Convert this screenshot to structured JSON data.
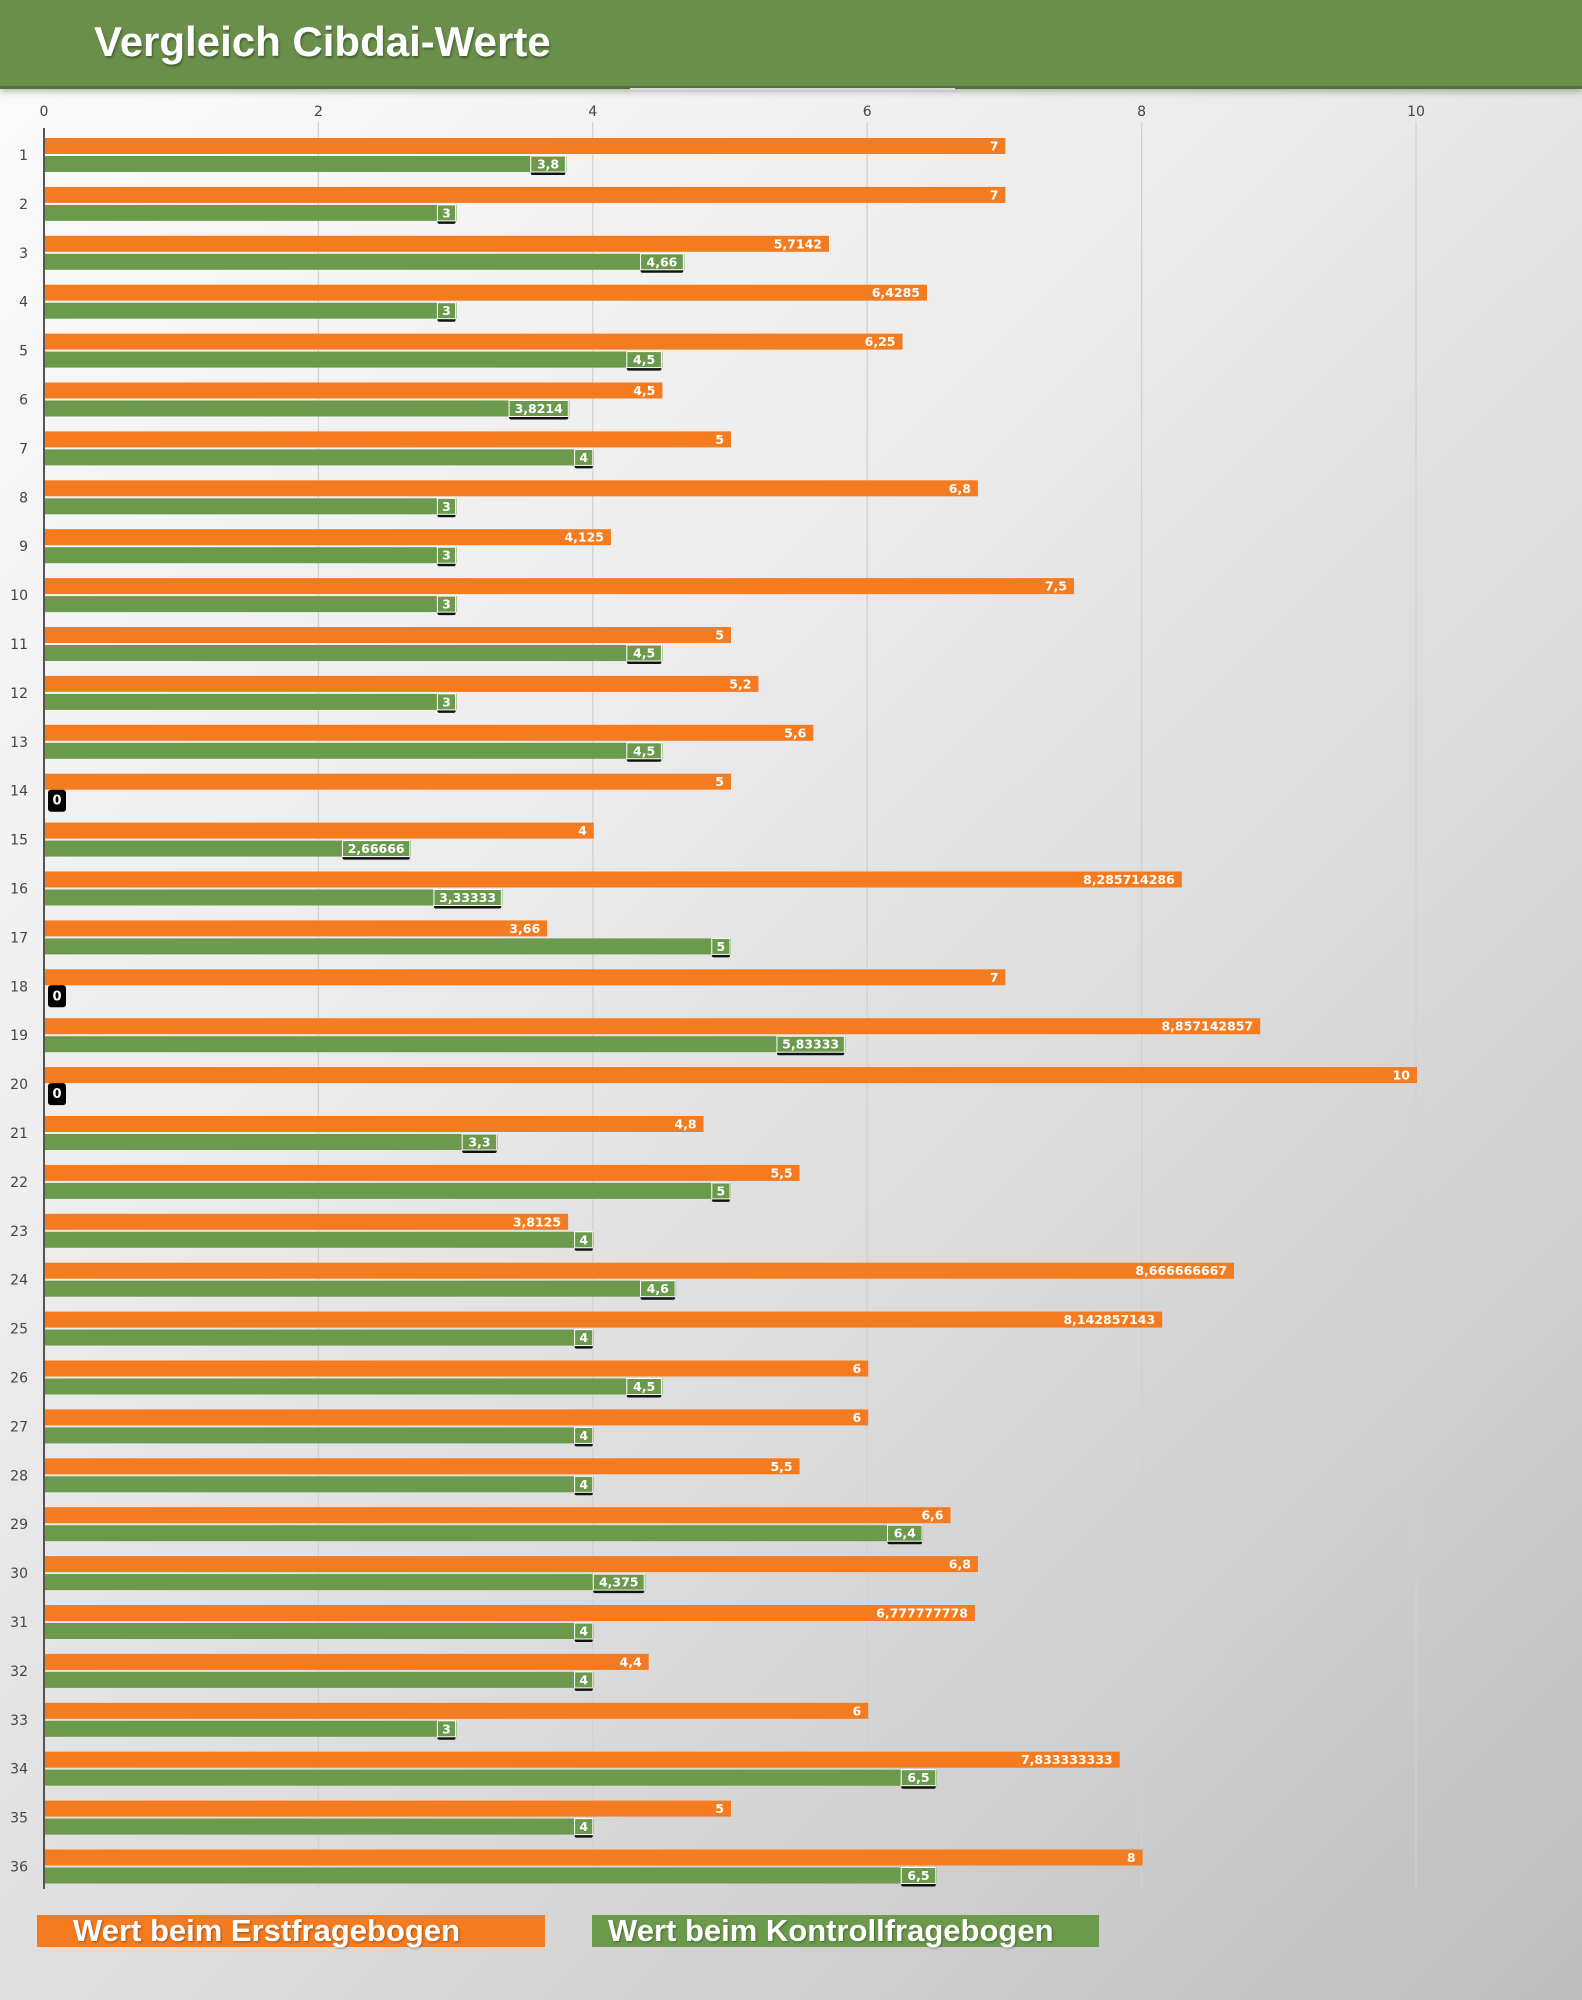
{
  "title": "Vergleich Cibdai-Werte",
  "colors": {
    "header": "#6a8f4b",
    "orange": "#f47b20",
    "green": "#6c9a4d",
    "zero_label": "#000000"
  },
  "legend": {
    "orange_label": "Wert beim Erstfragebogen",
    "green_label": "Wert beim Kontrollfragebogen"
  },
  "chart_data": {
    "type": "bar",
    "orientation": "horizontal",
    "title": "Vergleich Cibdai-Werte",
    "xlim": [
      0,
      10
    ],
    "x_ticks": [
      "0",
      "2",
      "4",
      "6",
      "8",
      "10"
    ],
    "grid": true,
    "legend_position": "bottom",
    "categories": [
      "1",
      "2",
      "3",
      "4",
      "5",
      "6",
      "7",
      "8",
      "9",
      "10",
      "11",
      "12",
      "13",
      "14",
      "15",
      "16",
      "17",
      "18",
      "19",
      "20",
      "21",
      "22",
      "23",
      "24",
      "25",
      "26",
      "27",
      "28",
      "29",
      "30",
      "31",
      "32",
      "33",
      "34",
      "35",
      "36"
    ],
    "series": [
      {
        "name": "Wert beim Erstfragebogen",
        "color": "#f47b20",
        "values": [
          7,
          7,
          5.7142,
          6.4285,
          6.25,
          4.5,
          5,
          6.8,
          4.125,
          7.5,
          5,
          5.2,
          5.6,
          5,
          4,
          8.285714286,
          3.66,
          7,
          8.857142857,
          10,
          4.8,
          5.5,
          3.8125,
          8.666666667,
          8.142857143,
          6,
          6,
          5.5,
          6.6,
          6.8,
          6.777777778,
          4.4,
          6,
          7.833333333,
          5,
          8
        ],
        "labels": [
          "7",
          "7",
          "5,7142",
          "6,4285",
          "6,25",
          "4,5",
          "5",
          "6,8",
          "4,125",
          "7,5",
          "5",
          "5,2",
          "5,6",
          "5",
          "4",
          "8,285714286",
          "3,66",
          "7",
          "8,857142857",
          "10",
          "4,8",
          "5,5",
          "3,8125",
          "8,666666667",
          "8,142857143",
          "6",
          "6",
          "5,5",
          "6,6",
          "6,8",
          "6,777777778",
          "4,4",
          "6",
          "7,833333333",
          "5",
          "8"
        ]
      },
      {
        "name": "Wert beim Kontrollfragebogen",
        "color": "#6c9a4d",
        "values": [
          3.8,
          3,
          4.66,
          3,
          4.5,
          3.8214,
          4,
          3,
          3,
          3,
          4.5,
          3,
          4.5,
          0,
          2.66666,
          3.33333,
          5,
          0,
          5.83333,
          0,
          3.3,
          5,
          4,
          4.6,
          4,
          4.5,
          4,
          4,
          6.4,
          4.375,
          4,
          4,
          3,
          6.5,
          4,
          6.5
        ],
        "labels": [
          "3,8",
          "3",
          "4,66",
          "3",
          "4,5",
          "3,8214",
          "4",
          "3",
          "3",
          "3",
          "4,5",
          "3",
          "4,5",
          "0",
          "2,66666",
          "3,33333",
          "5",
          "0",
          "5,83333",
          "0",
          "3,3",
          "5",
          "4",
          "4,6",
          "4",
          "4,5",
          "4",
          "4",
          "6,4",
          "4,375",
          "4",
          "4",
          "3",
          "6,5",
          "4",
          "6,5"
        ]
      }
    ]
  }
}
